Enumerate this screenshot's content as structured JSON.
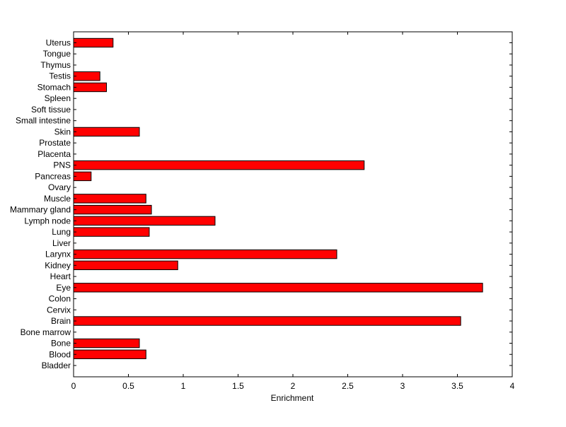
{
  "chart_data": {
    "type": "bar",
    "orientation": "horizontal",
    "categories": [
      "Bladder",
      "Blood",
      "Bone",
      "Bone marrow",
      "Brain",
      "Cervix",
      "Colon",
      "Eye",
      "Heart",
      "Kidney",
      "Larynx",
      "Liver",
      "Lung",
      "Lymph node",
      "Mammary gland",
      "Muscle",
      "Ovary",
      "Pancreas",
      "PNS",
      "Placenta",
      "Prostate",
      "Skin",
      "Small intestine",
      "Soft tissue",
      "Spleen",
      "Stomach",
      "Testis",
      "Thymus",
      "Tongue",
      "Uterus"
    ],
    "values": [
      0,
      0.66,
      0.6,
      0,
      3.53,
      0,
      0,
      3.73,
      0,
      0.95,
      2.4,
      0,
      0.69,
      1.29,
      0.71,
      0.66,
      0,
      0.16,
      2.65,
      0,
      0,
      0.6,
      0,
      0,
      0,
      0.3,
      0.24,
      0,
      0,
      0.36
    ],
    "title": "",
    "xlabel": "Enrichment",
    "ylabel": "",
    "xlim": [
      0,
      4
    ],
    "xticks": [
      "0",
      "0.5",
      "1",
      "1.5",
      "2",
      "2.5",
      "3",
      "3.5",
      "4"
    ],
    "grid": false,
    "bar_color": "#ff0000"
  }
}
